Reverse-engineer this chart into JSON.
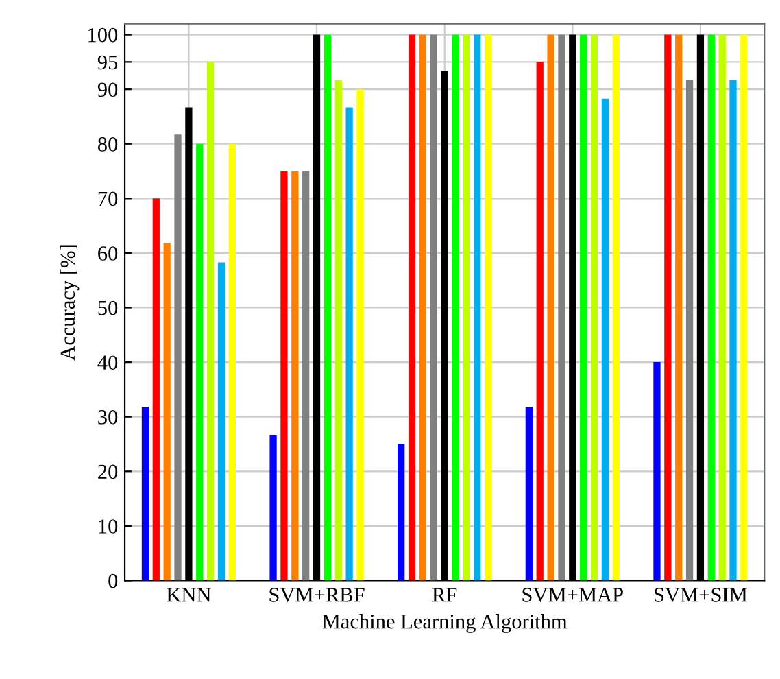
{
  "chart_data": {
    "type": "bar",
    "xlabel": "Machine Learning Algorithm",
    "ylabel": "Accuracy [%]",
    "categories": [
      "KNN",
      "SVM+RBF",
      "RF",
      "SVM+MAP",
      "SVM+SIM"
    ],
    "series": [
      {
        "color": "#0000ff",
        "values": [
          31.8,
          26.7,
          25,
          31.8,
          40
        ]
      },
      {
        "color": "#ff0000",
        "values": [
          70,
          75,
          100,
          95,
          100
        ]
      },
      {
        "color": "#ff8000",
        "values": [
          61.8,
          75,
          100,
          100,
          100
        ]
      },
      {
        "color": "#808080",
        "values": [
          81.7,
          75,
          100,
          100,
          91.7
        ]
      },
      {
        "color": "#000000",
        "values": [
          86.7,
          100,
          93.3,
          100,
          100
        ]
      },
      {
        "color": "#00ff00",
        "values": [
          80,
          100,
          100,
          100,
          100
        ]
      },
      {
        "color": "#bfff00",
        "values": [
          95,
          91.7,
          100,
          100,
          100
        ]
      },
      {
        "color": "#00aeef",
        "values": [
          58.3,
          86.7,
          100,
          88.3,
          91.7
        ]
      },
      {
        "color": "#ffff00",
        "values": [
          80,
          90,
          100,
          100,
          100
        ]
      }
    ],
    "ylim": [
      0,
      102
    ],
    "yticks": [
      0,
      10,
      20,
      30,
      40,
      50,
      60,
      70,
      80,
      90,
      95,
      100
    ],
    "grid": true
  }
}
